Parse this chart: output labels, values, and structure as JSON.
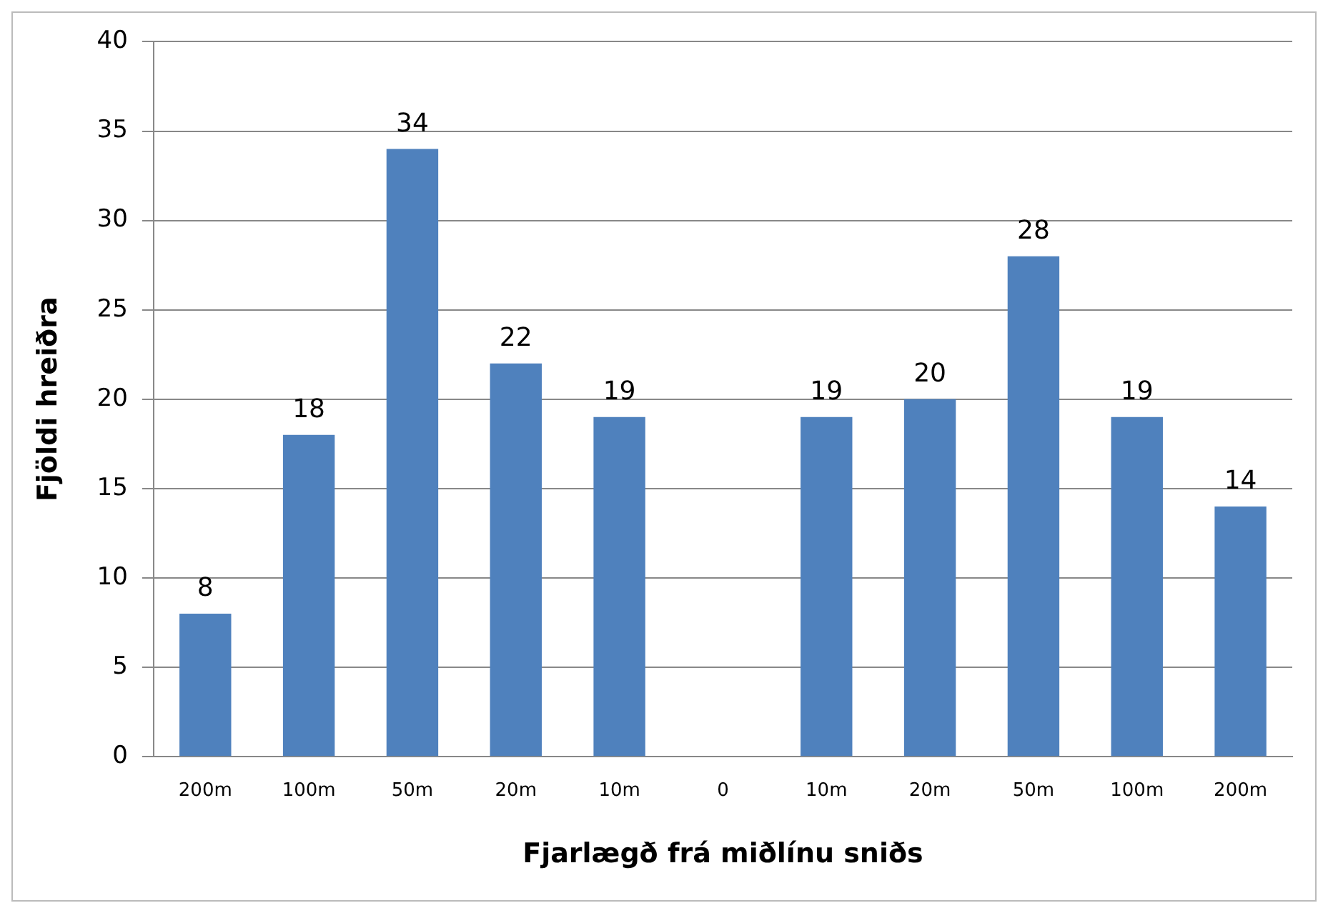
{
  "chart_data": {
    "type": "bar",
    "xlabel": "Fjarlægð frá miðlínu sniðs",
    "ylabel": "Fjöldi hreiðra",
    "categories": [
      "200m",
      "100m",
      "50m",
      "20m",
      "10m",
      "0",
      "10m",
      "20m",
      "50m",
      "100m",
      "200m"
    ],
    "values": [
      8,
      18,
      34,
      22,
      19,
      null,
      19,
      20,
      28,
      19,
      14
    ],
    "color": "#4f81bd",
    "ylim": [
      0,
      40
    ],
    "yticks": [
      0,
      5,
      10,
      15,
      20,
      25,
      30,
      35,
      40
    ],
    "grid": "y",
    "data_labels": true,
    "legend": false
  }
}
